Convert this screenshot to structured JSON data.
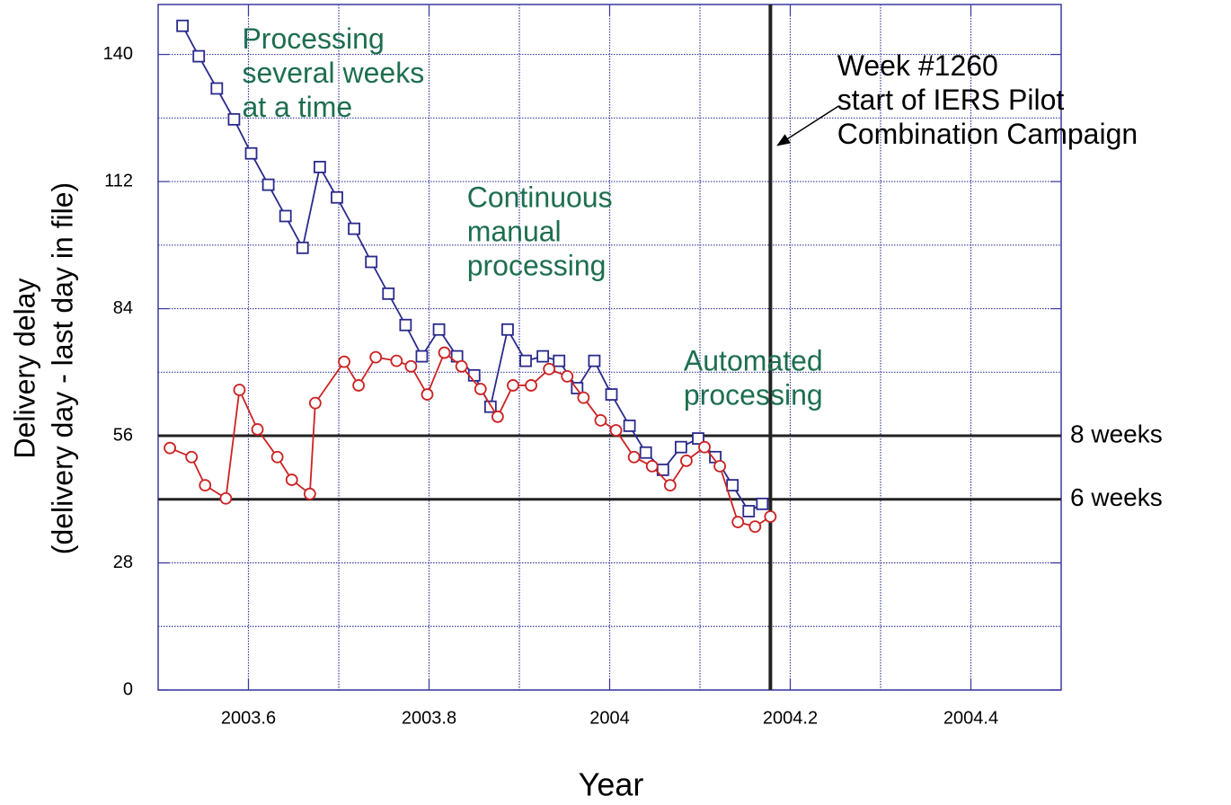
{
  "chart_data": {
    "type": "line",
    "xlabel": "Year",
    "ylabel": [
      "Delivery delay",
      "(delivery day - last day in file)"
    ],
    "xlim": [
      2003.5,
      2004.5
    ],
    "ylim": [
      0,
      151
    ],
    "xticks": [
      2003.6,
      2003.8,
      2004,
      2004.2,
      2004.4
    ],
    "xminorticks": [
      2003.7,
      2003.9,
      2004.1,
      2004.3
    ],
    "yticks": [
      0,
      28,
      56,
      84,
      112,
      140
    ],
    "yminorticks": [
      14,
      42,
      70,
      98,
      126
    ],
    "grid": true,
    "series": [
      {
        "color": "#2a2a8c",
        "marker": "square",
        "x": [
          2003.527,
          2003.545,
          2003.565,
          2003.584,
          2003.603,
          2003.622,
          2003.641,
          2003.66,
          2003.679,
          2003.698,
          2003.717,
          2003.736,
          2003.755,
          2003.774,
          2003.792,
          2003.811,
          2003.831,
          2003.85,
          2003.868,
          2003.887,
          2003.907,
          2003.926,
          2003.944,
          2003.964,
          2003.983,
          2004.002,
          2004.022,
          2004.04,
          2004.059,
          2004.079,
          2004.098,
          2004.117,
          2004.136,
          2004.154,
          2004.169
        ],
        "values": [
          146.3,
          139.6,
          132.5,
          125.7,
          118.2,
          111.3,
          104.4,
          97.4,
          115.2,
          108.5,
          101.6,
          94.3,
          87.3,
          80.4,
          73.5,
          79.4,
          73.5,
          69.3,
          62.4,
          79.4,
          72.5,
          73.5,
          72.5,
          66.5,
          72.5,
          65.1,
          58.2,
          52.3,
          48.5,
          53.5,
          55.4,
          51.3,
          45.1,
          39.4,
          41.0
        ]
      },
      {
        "color": "#cc2222",
        "marker": "circle",
        "x": [
          2003.513,
          2003.537,
          2003.552,
          2003.575,
          2003.59,
          2003.61,
          2003.632,
          2003.648,
          2003.668,
          2003.674,
          2003.706,
          2003.722,
          2003.741,
          2003.764,
          2003.78,
          2003.798,
          2003.817,
          2003.836,
          2003.857,
          2003.876,
          2003.893,
          2003.913,
          2003.933,
          2003.953,
          2003.971,
          2003.99,
          2004.007,
          2004.027,
          2004.047,
          2004.067,
          2004.085,
          2004.105,
          2004.122,
          2004.142,
          2004.161,
          2004.178
        ],
        "values": [
          53.3,
          51.3,
          45.1,
          42.2,
          66.1,
          57.4,
          51.3,
          46.3,
          43.2,
          63.2,
          72.3,
          67.1,
          73.3,
          72.5,
          71.3,
          65.1,
          74.3,
          71.3,
          66.3,
          60.2,
          67.1,
          67.1,
          70.7,
          69.1,
          64.4,
          59.4,
          57.2,
          51.3,
          49.3,
          45.1,
          50.5,
          53.5,
          49.3,
          37.0,
          36.0,
          38.2
        ]
      }
    ],
    "hlines": [
      {
        "value": 56,
        "label": "8 weeks"
      },
      {
        "value": 42,
        "label": "6 weeks"
      }
    ],
    "vline": 2004.178,
    "annotations": [
      {
        "lines": [
          "Processing",
          "several weeks",
          "at a time"
        ],
        "x": 2003.593,
        "y": 143,
        "color": "#1d6e4f"
      },
      {
        "lines": [
          "Continuous",
          "manual",
          "processing"
        ],
        "x": 2003.842,
        "y": 108,
        "color": "#1d6e4f"
      },
      {
        "lines": [
          "Automated",
          "processing"
        ],
        "x": 2004.082,
        "y": 72,
        "color": "#1d6e4f"
      },
      {
        "lines": [
          "Week #1260",
          "start of IERS Pilot",
          "Combination Campaign"
        ],
        "x": 2004.252,
        "y": 137,
        "color": "#000000",
        "arrow_to": [
          2004.186,
          120
        ]
      }
    ]
  }
}
